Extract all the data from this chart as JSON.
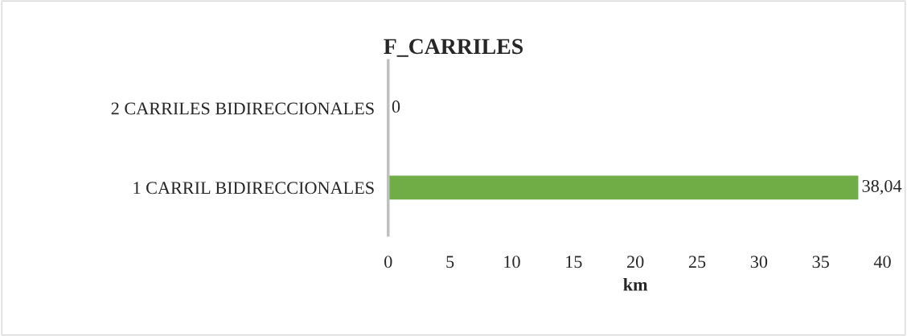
{
  "chart_data": {
    "type": "bar",
    "orientation": "horizontal",
    "title": "F_CARRILES",
    "xlabel": "km",
    "categories": [
      "2 CARRILES BIDIRECCIONALES",
      "1 CARRIL BIDIRECCIONALES"
    ],
    "values": [
      0,
      38.04
    ],
    "color": "#70ad47",
    "value_labels": [
      "0",
      "38,04"
    ],
    "xlim": [
      0,
      40
    ],
    "xticks": [
      0,
      5,
      10,
      15,
      20,
      25,
      30,
      35,
      40
    ],
    "grid": false,
    "legend": false
  }
}
